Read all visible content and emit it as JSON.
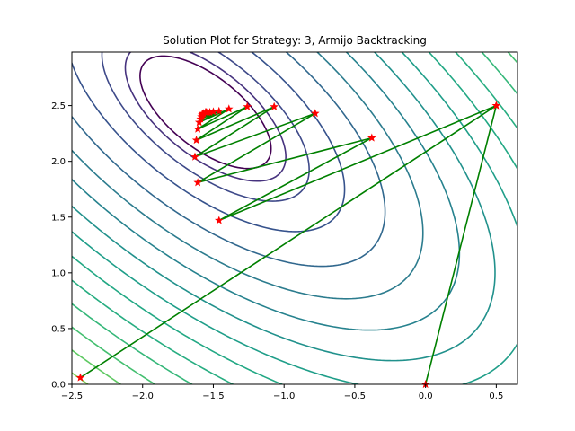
{
  "chart_data": {
    "type": "line",
    "title": "Solution Plot for Strategy: 3, Armijo Backtracking",
    "xlabel": "",
    "ylabel": "",
    "xlim": [
      -2.5,
      0.65
    ],
    "ylim": [
      0.0,
      2.98
    ],
    "grid": false,
    "x_ticks": [
      -2.5,
      -2.0,
      -1.5,
      -1.0,
      -0.5,
      0.0,
      0.5
    ],
    "x_tick_labels": [
      "−2.5",
      "−2.0",
      "−1.5",
      "−1.0",
      "−0.5",
      "0.0",
      "0.5"
    ],
    "y_ticks": [
      0.0,
      0.5,
      1.0,
      1.5,
      2.0,
      2.5
    ],
    "y_tick_labels": [
      "0.0",
      "0.5",
      "1.0",
      "1.5",
      "2.0",
      "2.5"
    ],
    "path": {
      "line_color": "#008000",
      "marker_color": "#ff0000",
      "marker": "star",
      "x": [
        0.0,
        0.5,
        -2.44,
        0.5,
        -1.46,
        -0.38,
        -1.61,
        -0.78,
        -1.63,
        -1.07,
        -1.62,
        -1.26,
        -1.61,
        -1.39,
        -1.6,
        -1.46,
        -1.59,
        -1.5,
        -1.585,
        -1.525,
        -1.58,
        -1.54,
        -1.575,
        -1.55,
        -1.57,
        -1.555
      ],
      "y": [
        0.0,
        2.5,
        0.06,
        2.5,
        1.47,
        2.21,
        1.81,
        2.43,
        2.04,
        2.49,
        2.19,
        2.49,
        2.29,
        2.47,
        2.35,
        2.45,
        2.38,
        2.445,
        2.4,
        2.44,
        2.415,
        2.44,
        2.425,
        2.44,
        2.43,
        2.44
      ]
    },
    "contours": {
      "colormap": "viridis",
      "levels": [
        0.2,
        0.3,
        0.5,
        0.9,
        1.5,
        2.2,
        3.0,
        3.9,
        4.9,
        6.0,
        7.2,
        8.5,
        9.9,
        11.4,
        13.0,
        14.7,
        16.5,
        18.4,
        20.4,
        22.5
      ],
      "colors": [
        "#440154",
        "#46327e",
        "#3e4989",
        "#36528c",
        "#31688e",
        "#2c7c8e",
        "#26828e",
        "#21918c",
        "#1f9e89",
        "#22a884",
        "#27ad81",
        "#35b779",
        "#44bf70",
        "#5ec962",
        "#7ad151",
        "#95d840",
        "#b5de2b",
        "#c9e120",
        "#e0e320",
        "#fde725"
      ]
    }
  }
}
